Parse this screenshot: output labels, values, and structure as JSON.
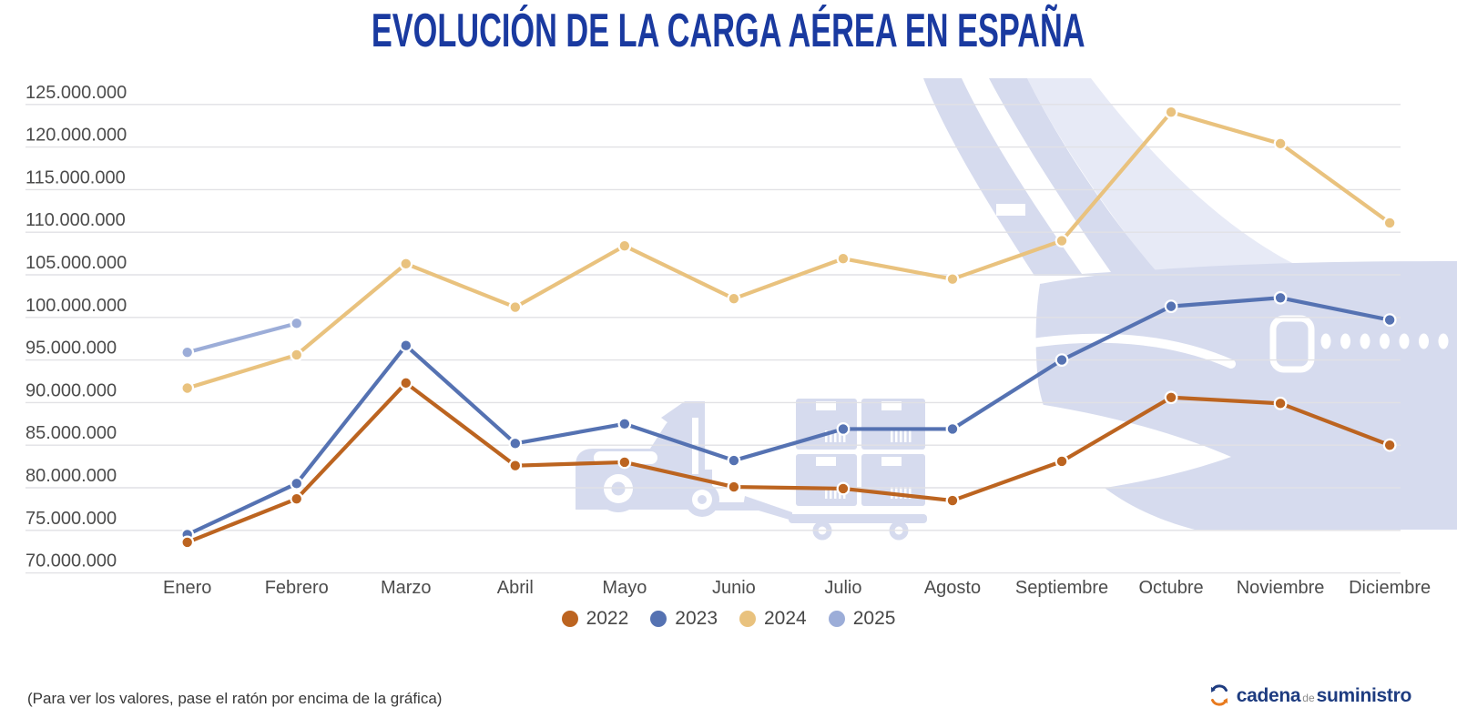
{
  "title": "EVOLUCIÓN DE LA CARGA AÉREA EN ESPAÑA",
  "footer": {
    "note": "(Para ver los valores, pase el ratón por encima de la gráfica)"
  },
  "logo": {
    "part1": "cadena",
    "part2": "de",
    "part3": "suministro"
  },
  "colors": {
    "title": "#1a3aa0",
    "axis_label": "#4c4c4c",
    "gridline": "#e1e1e5",
    "watermark": "#d6dbee",
    "watermark_light": "#e7eaf6",
    "logo_blue": "#1e3c80",
    "logo_orange": "#e87a1e",
    "series_2022": "#bc6420",
    "series_2023": "#5572b2",
    "series_2024": "#e9c27e",
    "series_2025": "#9cadd8"
  },
  "watermarks": [
    "airplane-watermark",
    "forklift-watermark",
    "cargo-boxes-watermark"
  ],
  "chart_data": {
    "type": "line",
    "title": "EVOLUCIÓN DE LA CARGA AÉREA EN ESPAÑA",
    "categories": [
      "Enero",
      "Febrero",
      "Marzo",
      "Abril",
      "Mayo",
      "Junio",
      "Julio",
      "Agosto",
      "Septiembre",
      "Octubre",
      "Noviembre",
      "Diciembre"
    ],
    "series": [
      {
        "name": "2022",
        "color": "#bc6420",
        "values": [
          73600000,
          78700000,
          92300000,
          82600000,
          83000000,
          80100000,
          79900000,
          78500000,
          83100000,
          90600000,
          89900000,
          85000000
        ]
      },
      {
        "name": "2023",
        "color": "#5572b2",
        "values": [
          74500000,
          80500000,
          96700000,
          85200000,
          87500000,
          83200000,
          86900000,
          86900000,
          95000000,
          101300000,
          102300000,
          99700000
        ]
      },
      {
        "name": "2024",
        "color": "#e9c27e",
        "values": [
          91700000,
          95600000,
          106300000,
          101200000,
          108400000,
          102200000,
          106900000,
          104500000,
          109000000,
          124100000,
          120400000,
          111100000
        ]
      },
      {
        "name": "2025",
        "color": "#9cadd8",
        "values": [
          95900000,
          99300000
        ]
      }
    ],
    "y_axis": {
      "min": 70000000,
      "max": 125000000,
      "step": 5000000,
      "tick_labels": [
        "125.000.000",
        "120.000.000",
        "115.000.000",
        "110.000.000",
        "105.000.000",
        "100.000.000",
        "95.000.000",
        "90.000.000",
        "85.000.000",
        "80.000.000",
        "75.000.000",
        "70.000.000"
      ]
    },
    "grid": true,
    "legend_position": "bottom",
    "legend_labels": [
      "2022",
      "2023",
      "2024",
      "2025"
    ]
  }
}
